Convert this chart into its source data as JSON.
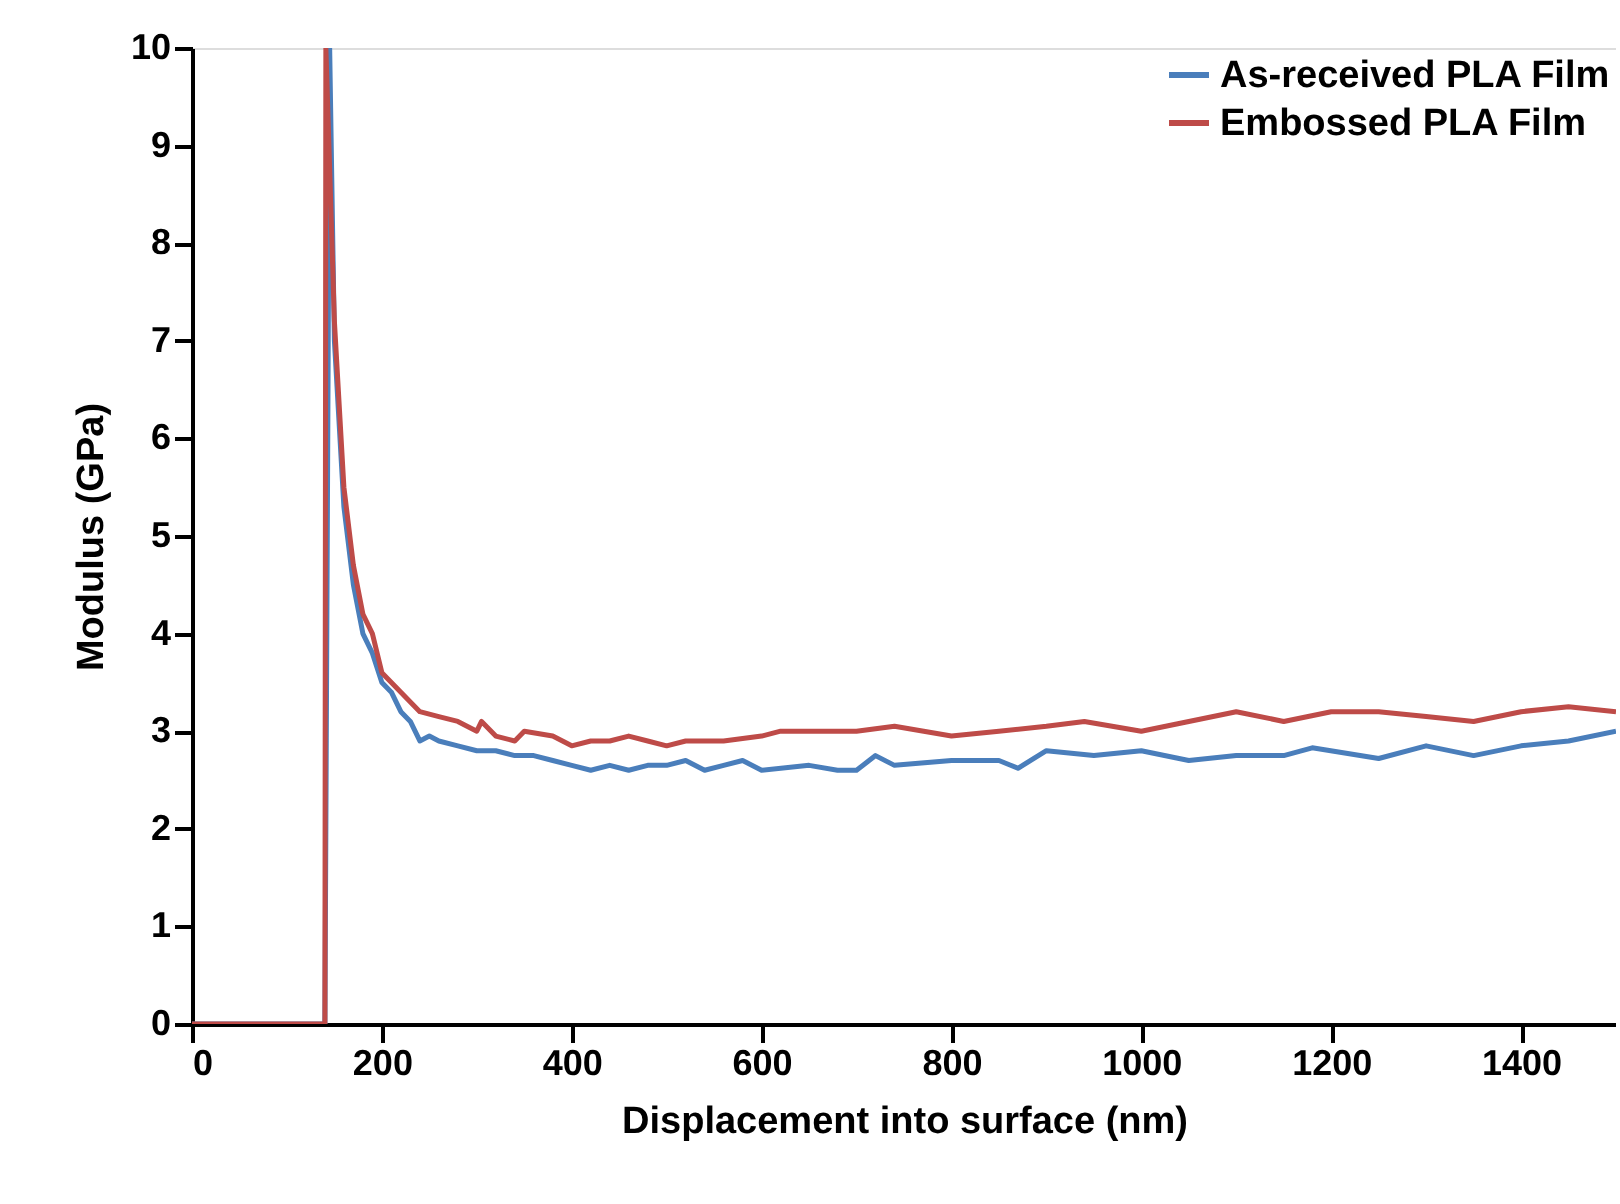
{
  "chart_data": {
    "type": "line",
    "xlabel": "Displacement into surface (nm)",
    "ylabel": "Modulus (GPa)",
    "xlim": [
      0,
      1500
    ],
    "ylim": [
      0,
      10
    ],
    "xticks": [
      0,
      200,
      400,
      600,
      800,
      1000,
      1200,
      1400
    ],
    "yticks": [
      0,
      1,
      2,
      3,
      4,
      5,
      6,
      7,
      8,
      9,
      10
    ],
    "grid": false,
    "legend": "top right",
    "marker": "none",
    "line_style": "solid",
    "series": [
      {
        "name": "As-received PLA Film",
        "color": "#4a7ebb",
        "x": [
          0,
          140,
          145,
          150,
          160,
          170,
          180,
          190,
          200,
          210,
          220,
          230,
          240,
          250,
          260,
          280,
          300,
          320,
          340,
          360,
          380,
          400,
          420,
          440,
          460,
          480,
          500,
          520,
          540,
          560,
          580,
          600,
          650,
          680,
          700,
          720,
          740,
          800,
          850,
          870,
          900,
          950,
          1000,
          1050,
          1100,
          1150,
          1180,
          1250,
          1300,
          1350,
          1400,
          1450,
          1500
        ],
        "values": [
          0,
          0,
          10,
          7,
          5.3,
          4.5,
          4.0,
          3.8,
          3.5,
          3.4,
          3.2,
          3.1,
          2.9,
          2.95,
          2.9,
          2.85,
          2.8,
          2.8,
          2.75,
          2.75,
          2.7,
          2.65,
          2.6,
          2.65,
          2.6,
          2.65,
          2.65,
          2.7,
          2.6,
          2.65,
          2.7,
          2.6,
          2.65,
          2.6,
          2.6,
          2.75,
          2.65,
          2.7,
          2.7,
          2.62,
          2.8,
          2.75,
          2.8,
          2.7,
          2.75,
          2.75,
          2.83,
          2.72,
          2.85,
          2.75,
          2.85,
          2.9,
          3.0
        ]
      },
      {
        "name": "Embossed PLA Film",
        "color": "#be4b48",
        "x": [
          0,
          140,
          141,
          150,
          160,
          170,
          180,
          190,
          200,
          220,
          240,
          260,
          280,
          300,
          305,
          320,
          340,
          350,
          380,
          400,
          420,
          440,
          460,
          480,
          500,
          520,
          560,
          600,
          620,
          700,
          740,
          800,
          850,
          900,
          940,
          1000,
          1050,
          1100,
          1150,
          1200,
          1250,
          1300,
          1350,
          1400,
          1450,
          1500
        ],
        "values": [
          0,
          0,
          10,
          7.2,
          5.5,
          4.7,
          4.2,
          4.0,
          3.6,
          3.4,
          3.2,
          3.15,
          3.1,
          3.0,
          3.1,
          2.95,
          2.9,
          3.0,
          2.95,
          2.85,
          2.9,
          2.9,
          2.95,
          2.9,
          2.85,
          2.9,
          2.9,
          2.95,
          3.0,
          3.0,
          3.05,
          2.95,
          3.0,
          3.05,
          3.1,
          3.0,
          3.1,
          3.2,
          3.1,
          3.2,
          3.2,
          3.15,
          3.1,
          3.2,
          3.25,
          3.2
        ]
      }
    ]
  }
}
